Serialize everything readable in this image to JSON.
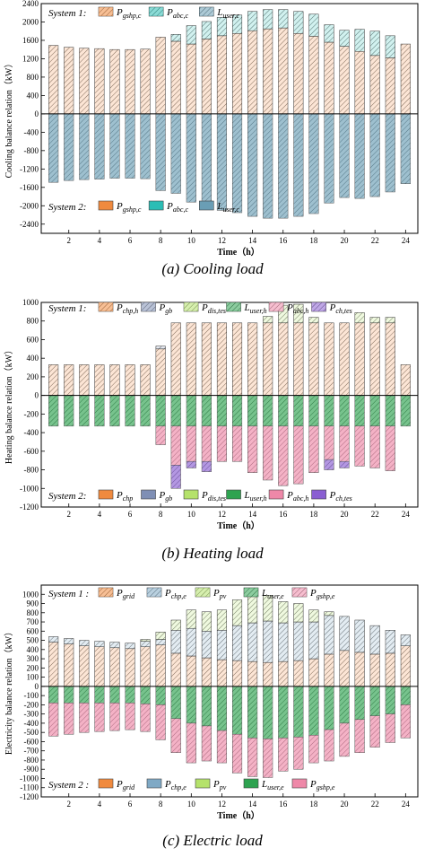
{
  "chart_data": [
    {
      "type": "bar",
      "x": [
        1,
        2,
        3,
        4,
        5,
        6,
        7,
        8,
        9,
        10,
        11,
        12,
        13,
        14,
        15,
        16,
        17,
        18,
        19,
        20,
        21,
        22,
        23,
        24
      ],
      "xticks": [
        2,
        4,
        6,
        8,
        10,
        12,
        14,
        16,
        18,
        20,
        22,
        24
      ],
      "xlabel": "Time（h）",
      "ylabel": "Cooling balance relation（kW）",
      "ylim": [
        -2600,
        2400
      ],
      "yticks": [
        -2400,
        -2000,
        -1600,
        -1200,
        -800,
        -400,
        0,
        400,
        800,
        1200,
        1600,
        2000,
        2400
      ],
      "caption": "(a) Cooling load",
      "system1": {
        "label": "System 1:",
        "series": [
          {
            "key": "gshp",
            "color": "#F08A3E",
            "values": [
              1490,
              1450,
              1430,
              1420,
              1400,
              1400,
              1410,
              1670,
              1580,
              1520,
              1630,
              1700,
              1750,
              1810,
              1850,
              1870,
              1750,
              1690,
              1560,
              1470,
              1360,
              1270,
              1220,
              1520
            ]
          },
          {
            "key": "abc",
            "color": "#2BBDB5",
            "values": [
              0,
              0,
              0,
              0,
              0,
              0,
              0,
              0,
              150,
              400,
              380,
              400,
              400,
              420,
              420,
              400,
              480,
              480,
              380,
              350,
              480,
              530,
              480,
              0
            ]
          }
        ]
      },
      "system2": {
        "label": "System 2:",
        "series": [
          {
            "key": "gshp",
            "color": "#F08A3E",
            "values": [
              0,
              0,
              0,
              0,
              0,
              0,
              0,
              0,
              0,
              0,
              0,
              0,
              0,
              0,
              0,
              0,
              0,
              0,
              0,
              0,
              0,
              0,
              0,
              0
            ]
          },
          {
            "key": "abc",
            "color": "#2BBDB5",
            "values": [
              0,
              0,
              0,
              0,
              0,
              0,
              0,
              0,
              0,
              0,
              0,
              0,
              0,
              0,
              0,
              0,
              0,
              0,
              0,
              0,
              0,
              0,
              0,
              0
            ]
          },
          {
            "key": "user",
            "color": "#6A9EB5",
            "values": [
              -1490,
              -1450,
              -1430,
              -1420,
              -1400,
              -1400,
              -1410,
              -1670,
              -1730,
              -1920,
              -2010,
              -2100,
              -2150,
              -2230,
              -2270,
              -2270,
              -2230,
              -2170,
              -1940,
              -1820,
              -1840,
              -1800,
              -1700,
              -1520
            ]
          }
        ]
      },
      "legend1": [
        {
          "pre": "P",
          "sub": "gshp,c",
          "color": "#F08A3E",
          "hatch": true
        },
        {
          "pre": "P",
          "sub": "abc,c",
          "color": "#2BBDB5",
          "hatch": true
        },
        {
          "pre": "L",
          "sub": "user,c",
          "color": "#6A9EB5",
          "hatch": true
        }
      ],
      "legend2": [
        {
          "pre": "P",
          "sub": "gshp,c",
          "color": "#F08A3E",
          "hatch": false
        },
        {
          "pre": "P",
          "sub": "abc,c",
          "color": "#2BBDB5",
          "hatch": false
        },
        {
          "pre": "L",
          "sub": "user,c",
          "color": "#6A9EB5",
          "hatch": false
        }
      ]
    },
    {
      "type": "bar",
      "x": [
        1,
        2,
        3,
        4,
        5,
        6,
        7,
        8,
        9,
        10,
        11,
        12,
        13,
        14,
        15,
        16,
        17,
        18,
        19,
        20,
        21,
        22,
        23,
        24
      ],
      "xticks": [
        2,
        4,
        6,
        8,
        10,
        12,
        14,
        16,
        18,
        20,
        22,
        24
      ],
      "xlabel": "Time（h）",
      "ylabel": "Heating balance relation（kW）",
      "ylim": [
        -1200,
        1000
      ],
      "yticks": [
        -1200,
        -1000,
        -800,
        -600,
        -400,
        -200,
        0,
        200,
        400,
        600,
        800,
        1000
      ],
      "caption": "(b) Heating load",
      "system1": {
        "label": "System 1:",
        "series": [
          {
            "key": "chp",
            "color": "#F08A3E",
            "values": [
              330,
              330,
              330,
              330,
              330,
              330,
              330,
              500,
              780,
              780,
              780,
              780,
              780,
              780,
              780,
              780,
              780,
              780,
              780,
              780,
              780,
              780,
              780,
              330
            ]
          },
          {
            "key": "gb",
            "color": "#7F8FB5",
            "values": [
              0,
              0,
              0,
              0,
              0,
              0,
              0,
              30,
              0,
              0,
              0,
              0,
              0,
              0,
              0,
              0,
              0,
              0,
              0,
              0,
              0,
              0,
              0,
              0
            ]
          },
          {
            "key": "dis",
            "color": "#B5E26B",
            "values": [
              0,
              0,
              0,
              0,
              0,
              0,
              0,
              0,
              0,
              0,
              0,
              0,
              0,
              0,
              70,
              190,
              200,
              60,
              0,
              0,
              110,
              60,
              60,
              0
            ]
          }
        ]
      },
      "system2": {
        "label": "System 2:",
        "series": [
          {
            "key": "user",
            "color": "#2EA350",
            "values": [
              -330,
              -330,
              -330,
              -330,
              -330,
              -330,
              -330,
              -330,
              -330,
              -330,
              -330,
              -330,
              -330,
              -330,
              -330,
              -330,
              -330,
              -330,
              -330,
              -330,
              -330,
              -330,
              -330,
              -330
            ]
          },
          {
            "key": "abc",
            "color": "#EE88A8",
            "values": [
              0,
              0,
              0,
              0,
              0,
              0,
              0,
              -200,
              -420,
              -380,
              -380,
              -380,
              -380,
              -500,
              -580,
              -640,
              -620,
              -500,
              -360,
              -380,
              -430,
              -450,
              -480,
              0
            ]
          },
          {
            "key": "chts",
            "color": "#8A5FD2",
            "values": [
              0,
              0,
              0,
              0,
              0,
              0,
              0,
              0,
              -250,
              -70,
              -110,
              0,
              0,
              0,
              0,
              0,
              0,
              0,
              -110,
              -70,
              0,
              0,
              0,
              0
            ]
          }
        ]
      },
      "legend1": [
        {
          "pre": "P",
          "sub": "chp,h",
          "color": "#F08A3E",
          "hatch": true
        },
        {
          "pre": "P",
          "sub": "gb",
          "color": "#7F8FB5",
          "hatch": true
        },
        {
          "pre": "P",
          "sub": "dis,tes",
          "color": "#B5E26B",
          "hatch": true
        },
        {
          "pre": "L",
          "sub": "user,h",
          "color": "#2EA350",
          "hatch": true
        },
        {
          "pre": "P",
          "sub": "abc,h",
          "color": "#EE88A8",
          "hatch": true
        },
        {
          "pre": "P",
          "sub": "ch,tes",
          "color": "#8A5FD2",
          "hatch": true
        }
      ],
      "legend2": [
        {
          "pre": "P",
          "sub": "chp",
          "color": "#F08A3E",
          "hatch": false
        },
        {
          "pre": "P",
          "sub": "gb",
          "color": "#7F8FB5",
          "hatch": false
        },
        {
          "pre": "P",
          "sub": "dis,tes",
          "color": "#B5E26B",
          "hatch": false
        },
        {
          "pre": "L",
          "sub": "user,h",
          "color": "#2EA350",
          "hatch": false
        },
        {
          "pre": "P",
          "sub": "abc,h",
          "color": "#EE88A8",
          "hatch": false
        },
        {
          "pre": "P",
          "sub": "ch,tes",
          "color": "#8A5FD2",
          "hatch": false
        }
      ]
    },
    {
      "type": "bar",
      "x": [
        1,
        2,
        3,
        4,
        5,
        6,
        7,
        8,
        9,
        10,
        11,
        12,
        13,
        14,
        15,
        16,
        17,
        18,
        19,
        20,
        21,
        22,
        23,
        24
      ],
      "xticks": [
        2,
        4,
        6,
        8,
        10,
        12,
        14,
        16,
        18,
        20,
        22,
        24
      ],
      "xlabel": "Time（h）",
      "ylabel": "Electricity balance relation（kW）",
      "ylim": [
        -1200,
        1100
      ],
      "yticks": [
        -1200,
        -1100,
        -1000,
        -900,
        -800,
        -700,
        -600,
        -500,
        -400,
        -300,
        -200,
        -100,
        0,
        100,
        200,
        300,
        400,
        500,
        600,
        700,
        800,
        900,
        1000
      ],
      "caption": "(c) Electric load",
      "system1": {
        "label": "System 1 :",
        "series": [
          {
            "key": "grid",
            "color": "#F08A3E",
            "values": [
              480,
              460,
              440,
              430,
              420,
              410,
              430,
              450,
              360,
              330,
              310,
              290,
              280,
              270,
              260,
              270,
              280,
              300,
              350,
              390,
              370,
              350,
              360,
              440
            ]
          },
          {
            "key": "chpe",
            "color": "#7FA9C5",
            "values": [
              60,
              60,
              60,
              60,
              60,
              60,
              60,
              60,
              250,
              300,
              290,
              320,
              380,
              420,
              450,
              420,
              420,
              400,
              420,
              370,
              350,
              310,
              250,
              120
            ]
          },
          {
            "key": "pv",
            "color": "#B5E26B",
            "values": [
              0,
              0,
              0,
              0,
              0,
              0,
              20,
              80,
              110,
              200,
              210,
              220,
              280,
              290,
              280,
              230,
              200,
              130,
              40,
              0,
              0,
              0,
              0,
              0
            ]
          }
        ]
      },
      "system2": {
        "label": "System 2 :",
        "series": [
          {
            "key": "user",
            "color": "#2EA350",
            "values": [
              -180,
              -180,
              -180,
              -180,
              -180,
              -180,
              -190,
              -200,
              -350,
              -400,
              -430,
              -480,
              -520,
              -560,
              -570,
              -560,
              -550,
              -530,
              -470,
              -400,
              -360,
              -320,
              -300,
              -200
            ]
          },
          {
            "key": "gshp",
            "color": "#EE88A8",
            "values": [
              -360,
              -340,
              -320,
              -310,
              -300,
              -290,
              -300,
              -380,
              -370,
              -430,
              -380,
              -350,
              -420,
              -420,
              -420,
              -360,
              -350,
              -300,
              -340,
              -360,
              -360,
              -340,
              -310,
              -360
            ]
          }
        ]
      },
      "legend1": [
        {
          "pre": "P",
          "sub": "grid",
          "color": "#F08A3E",
          "hatch": true
        },
        {
          "pre": "P",
          "sub": "chp,e",
          "color": "#7FA9C5",
          "hatch": true
        },
        {
          "pre": "P",
          "sub": "pv",
          "color": "#B5E26B",
          "hatch": true
        },
        {
          "pre": "L",
          "sub": "user,e",
          "color": "#2EA350",
          "hatch": true
        },
        {
          "pre": "P",
          "sub": "gshp,e",
          "color": "#EE88A8",
          "hatch": true
        }
      ],
      "legend2": [
        {
          "pre": "P",
          "sub": "grid",
          "color": "#F08A3E",
          "hatch": false
        },
        {
          "pre": "P",
          "sub": "chp,e",
          "color": "#7FA9C5",
          "hatch": false
        },
        {
          "pre": "P",
          "sub": "pv",
          "color": "#B5E26B",
          "hatch": false
        },
        {
          "pre": "L",
          "sub": "user,e",
          "color": "#2EA350",
          "hatch": false
        },
        {
          "pre": "P",
          "sub": "gshp,e",
          "color": "#EE88A8",
          "hatch": false
        }
      ]
    }
  ]
}
